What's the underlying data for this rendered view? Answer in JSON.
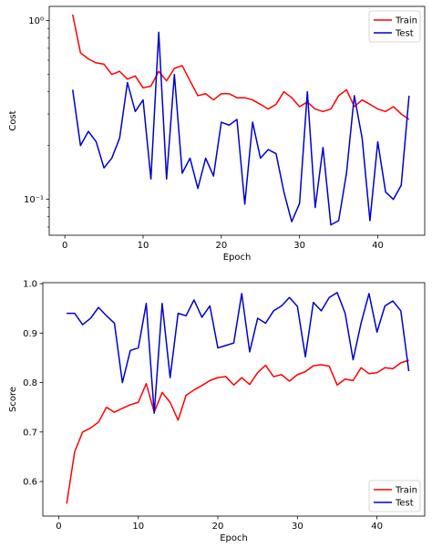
{
  "chart_data": [
    {
      "type": "line",
      "yscale": "log",
      "xlabel": "Epoch",
      "ylabel": "Cost",
      "xlim": [
        -2,
        46
      ],
      "ylim": [
        0.063,
        1.2
      ],
      "xticks": [
        0,
        10,
        20,
        30,
        40
      ],
      "yticks": [
        {
          "value": 1.0,
          "label": "10⁰"
        },
        {
          "value": 0.1,
          "label": "10⁻¹"
        }
      ],
      "grid": false,
      "legend": "top-right",
      "x": [
        1,
        2,
        3,
        4,
        5,
        6,
        7,
        8,
        9,
        10,
        11,
        12,
        13,
        14,
        15,
        16,
        17,
        18,
        19,
        20,
        21,
        22,
        23,
        24,
        25,
        26,
        27,
        28,
        29,
        30,
        31,
        32,
        33,
        34,
        35,
        36,
        37,
        38,
        39,
        40,
        41,
        42,
        43,
        44
      ],
      "series": [
        {
          "name": "Train",
          "color": "#ff0000",
          "values": [
            1.08,
            0.66,
            0.61,
            0.58,
            0.57,
            0.5,
            0.52,
            0.47,
            0.49,
            0.42,
            0.43,
            0.52,
            0.46,
            0.54,
            0.56,
            0.46,
            0.38,
            0.39,
            0.36,
            0.39,
            0.39,
            0.37,
            0.37,
            0.36,
            0.34,
            0.32,
            0.34,
            0.4,
            0.37,
            0.33,
            0.35,
            0.32,
            0.31,
            0.32,
            0.38,
            0.41,
            0.33,
            0.36,
            0.34,
            0.32,
            0.31,
            0.33,
            0.3,
            0.28
          ]
        },
        {
          "name": "Test",
          "color": "#0000cc",
          "values": [
            0.41,
            0.2,
            0.24,
            0.21,
            0.15,
            0.17,
            0.22,
            0.45,
            0.31,
            0.36,
            0.13,
            0.86,
            0.13,
            0.5,
            0.14,
            0.17,
            0.115,
            0.17,
            0.135,
            0.27,
            0.26,
            0.28,
            0.094,
            0.27,
            0.17,
            0.19,
            0.18,
            0.11,
            0.075,
            0.095,
            0.4,
            0.09,
            0.195,
            0.072,
            0.076,
            0.14,
            0.38,
            0.22,
            0.076,
            0.21,
            0.11,
            0.1,
            0.12,
            0.38
          ]
        }
      ]
    },
    {
      "type": "line",
      "xlabel": "Epoch",
      "ylabel": "Score",
      "xlim": [
        -2,
        46
      ],
      "ylim": [
        0.53,
        1.002
      ],
      "xticks": [
        0,
        10,
        20,
        30,
        40
      ],
      "yticks": [
        {
          "value": 0.6,
          "label": "0.6"
        },
        {
          "value": 0.7,
          "label": "0.7"
        },
        {
          "value": 0.8,
          "label": "0.8"
        },
        {
          "value": 0.9,
          "label": "0.9"
        },
        {
          "value": 1.0,
          "label": "1.0"
        }
      ],
      "grid": false,
      "legend": "bottom-right",
      "x": [
        1,
        2,
        3,
        4,
        5,
        6,
        7,
        8,
        9,
        10,
        11,
        12,
        13,
        14,
        15,
        16,
        17,
        18,
        19,
        20,
        21,
        22,
        23,
        24,
        25,
        26,
        27,
        28,
        29,
        30,
        31,
        32,
        33,
        34,
        35,
        36,
        37,
        38,
        39,
        40,
        41,
        42,
        43,
        44
      ],
      "series": [
        {
          "name": "Train",
          "color": "#ff0000",
          "values": [
            0.555,
            0.66,
            0.7,
            0.708,
            0.72,
            0.75,
            0.74,
            0.748,
            0.755,
            0.76,
            0.798,
            0.74,
            0.78,
            0.76,
            0.724,
            0.774,
            0.785,
            0.794,
            0.804,
            0.81,
            0.812,
            0.795,
            0.81,
            0.796,
            0.82,
            0.835,
            0.812,
            0.816,
            0.803,
            0.816,
            0.822,
            0.834,
            0.836,
            0.833,
            0.795,
            0.807,
            0.804,
            0.83,
            0.818,
            0.82,
            0.83,
            0.828,
            0.84,
            0.845
          ]
        },
        {
          "name": "Test",
          "color": "#0000cc",
          "values": [
            0.94,
            0.94,
            0.917,
            0.93,
            0.952,
            0.935,
            0.92,
            0.8,
            0.865,
            0.87,
            0.96,
            0.738,
            0.96,
            0.81,
            0.94,
            0.935,
            0.967,
            0.932,
            0.955,
            0.87,
            0.875,
            0.88,
            0.98,
            0.862,
            0.93,
            0.92,
            0.945,
            0.955,
            0.972,
            0.954,
            0.852,
            0.962,
            0.945,
            0.972,
            0.982,
            0.94,
            0.846,
            0.92,
            0.98,
            0.902,
            0.955,
            0.965,
            0.945,
            0.823
          ]
        }
      ]
    }
  ]
}
